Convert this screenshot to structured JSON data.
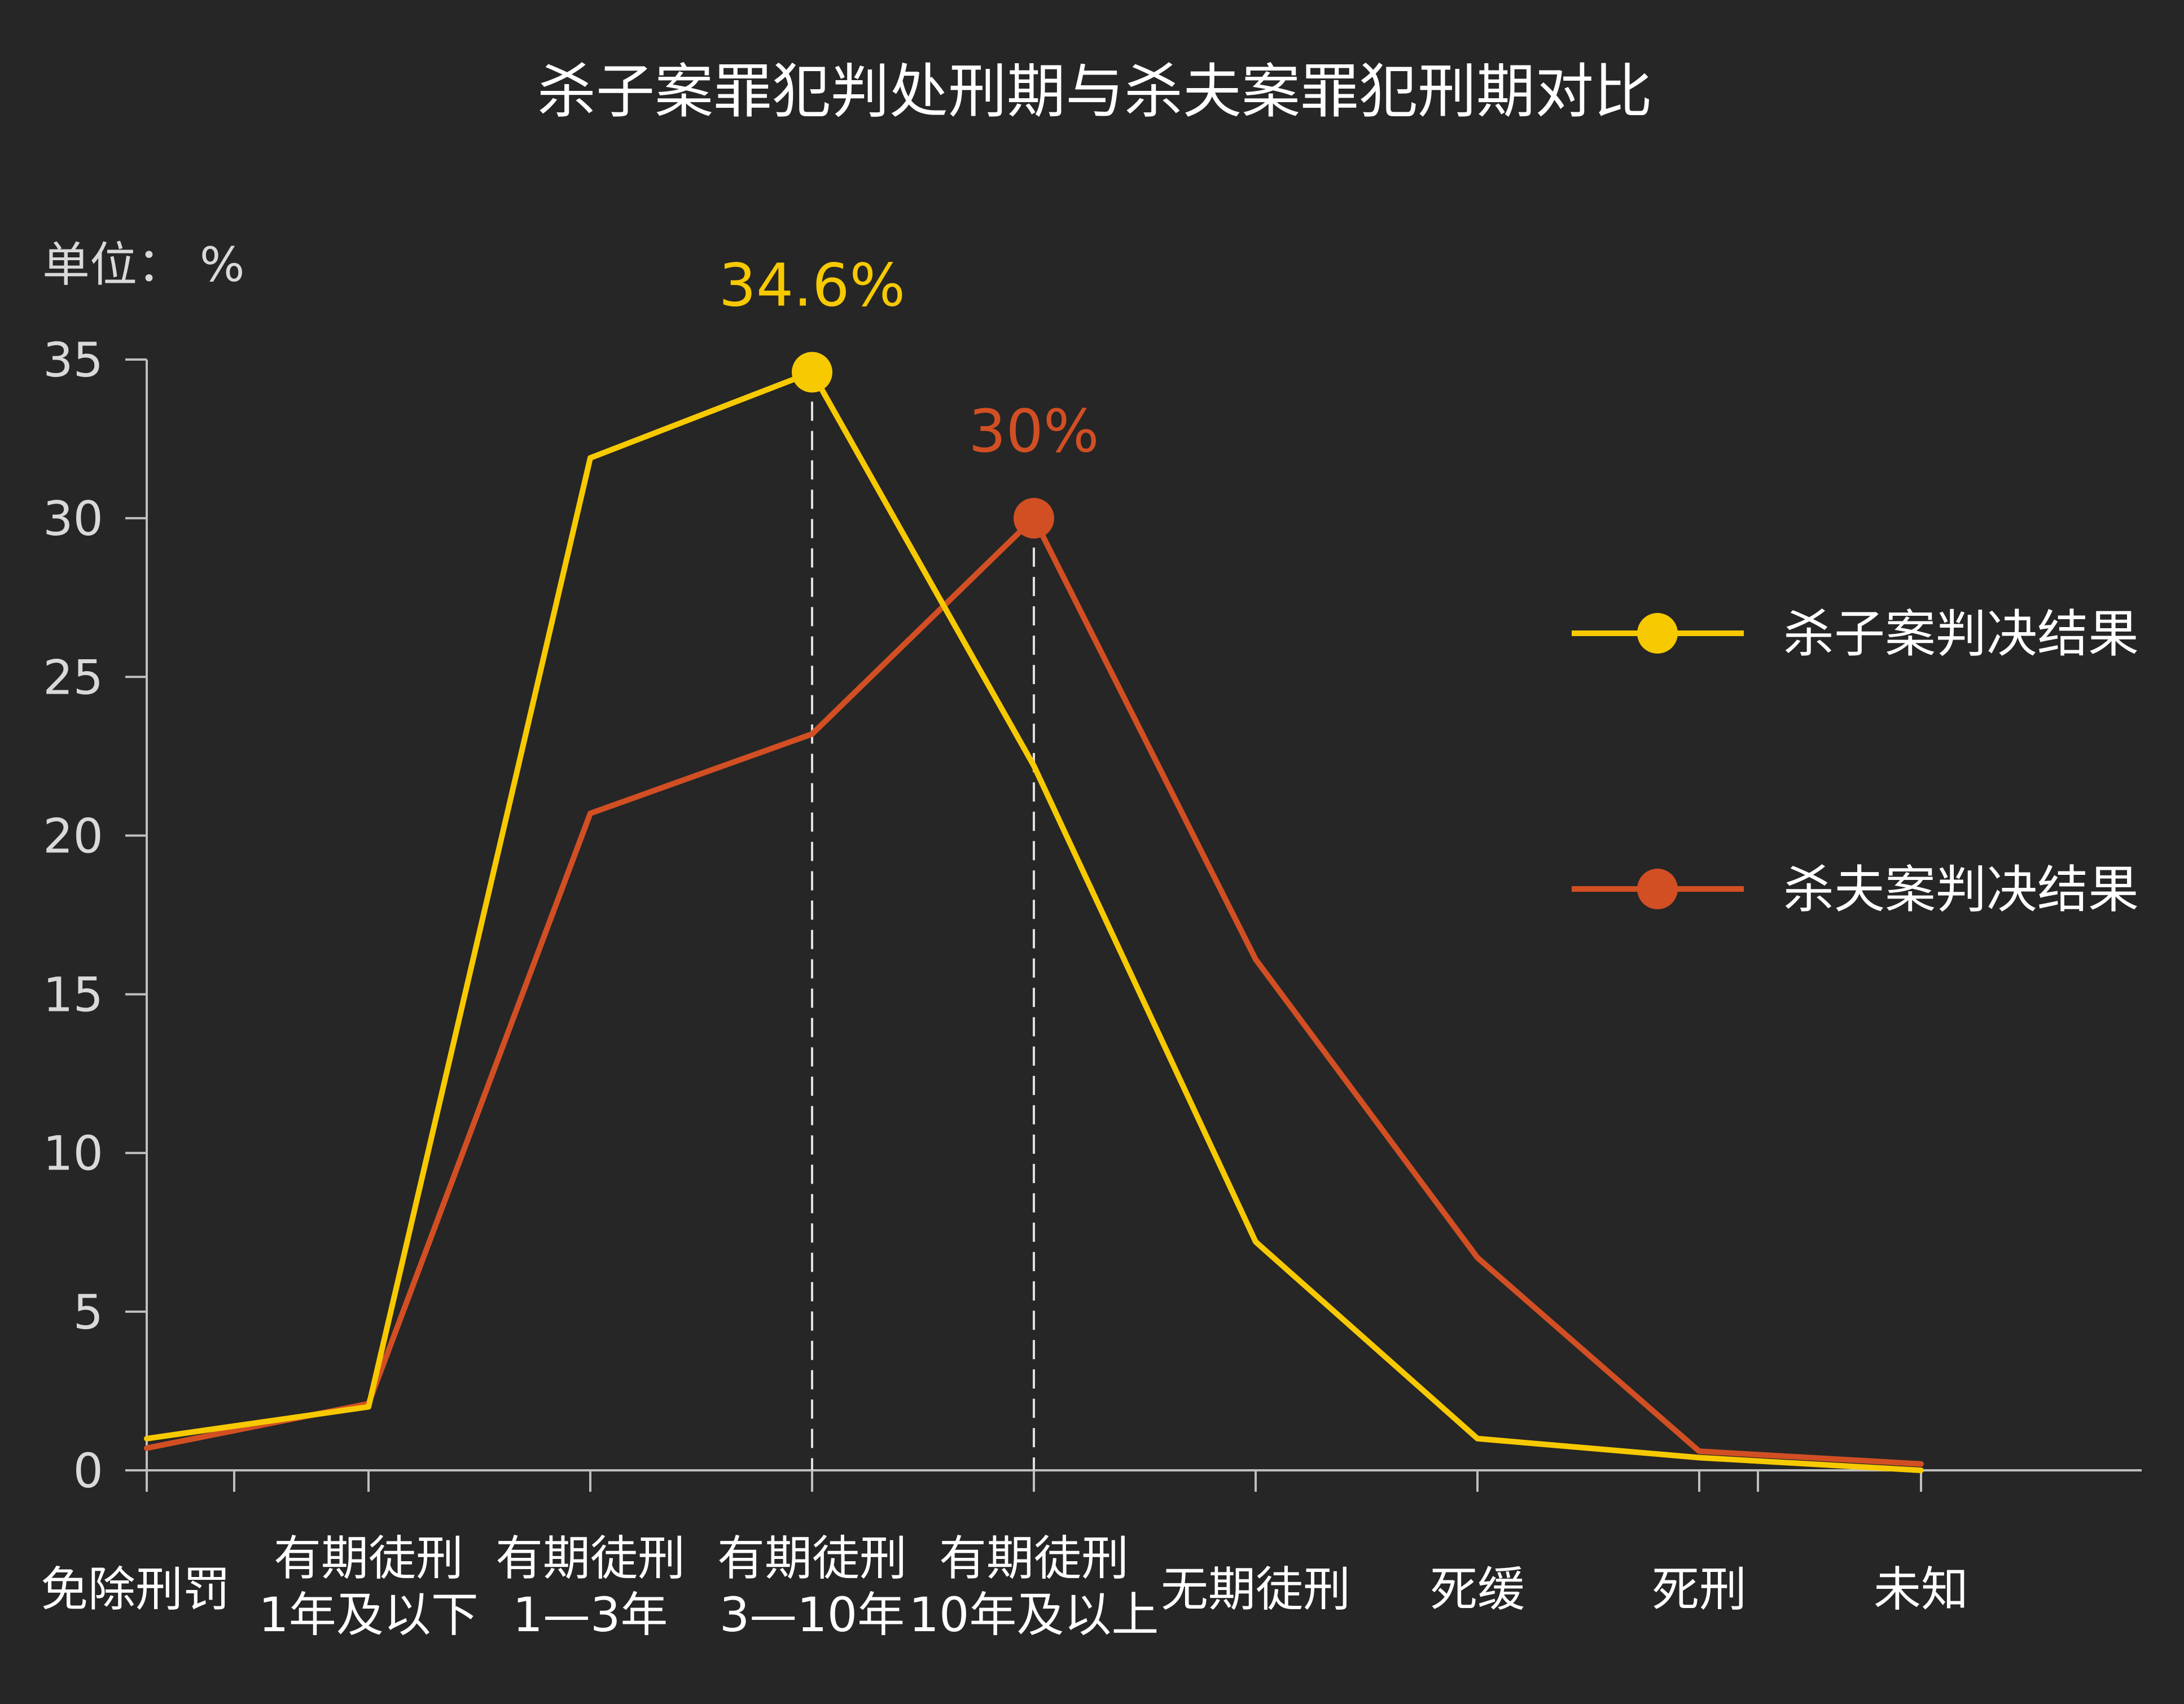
{
  "colors": {
    "background": "#262626",
    "axis": "#bfbfbf",
    "text": "#ffffff",
    "series_yellow": "#f7c900",
    "series_orange": "#d24f23"
  },
  "chart_data": {
    "type": "line",
    "title": "杀子案罪犯判处刑期与杀夫案罪犯刑期对比",
    "unit_label": "单位： %",
    "ylim": [
      0,
      35
    ],
    "yticks": [
      "0",
      "5",
      "10",
      "15",
      "20",
      "25",
      "30",
      "35"
    ],
    "grid": false,
    "legend_position": "right",
    "categories": [
      {
        "lines": [
          "免除刑罚"
        ],
        "color": "#ffffff"
      },
      {
        "lines": [
          "有期徒刑",
          "1年及以下"
        ],
        "color": "#ffffff"
      },
      {
        "lines": [
          "有期徒刑",
          "1—3年"
        ],
        "color": "#ffffff"
      },
      {
        "lines": [
          "有期徒刑",
          "3—10年"
        ],
        "color": "#f7c900"
      },
      {
        "lines": [
          "有期徒刑",
          "10年及以上"
        ],
        "color": "#d24f23"
      },
      {
        "lines": [
          "无期徒刑"
        ],
        "color": "#ffffff"
      },
      {
        "lines": [
          "死缓"
        ],
        "color": "#ffffff"
      },
      {
        "lines": [
          "死刑"
        ],
        "color": "#ffffff"
      },
      {
        "lines": [
          "未知"
        ],
        "color": "#ffffff"
      }
    ],
    "series": [
      {
        "name": "杀子案判决结果",
        "color": "#f7c900",
        "values": [
          1.0,
          2.0,
          31.9,
          34.6,
          22.2,
          7.2,
          1.0,
          0.4,
          0.0
        ],
        "peak_index": 3,
        "peak_label": "34.6%"
      },
      {
        "name": "杀夫案判决结果",
        "color": "#d24f23",
        "values": [
          0.7,
          2.1,
          20.7,
          23.2,
          30.0,
          16.1,
          6.7,
          0.6,
          0.2
        ],
        "peak_index": 4,
        "peak_label": "30%"
      }
    ]
  }
}
